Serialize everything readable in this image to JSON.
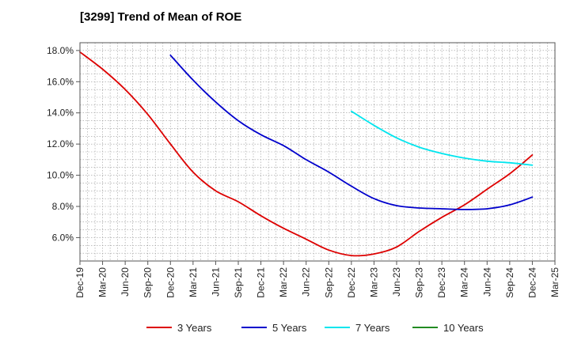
{
  "chart_data": {
    "type": "line",
    "title": "[3299]  Trend of Mean of ROE",
    "xlabel": "",
    "ylabel": "",
    "categories": [
      "Dec-19",
      "Mar-20",
      "Jun-20",
      "Sep-20",
      "Dec-20",
      "Mar-21",
      "Jun-21",
      "Sep-21",
      "Dec-21",
      "Mar-22",
      "Jun-22",
      "Sep-22",
      "Dec-22",
      "Mar-23",
      "Jun-23",
      "Sep-23",
      "Dec-23",
      "Mar-24",
      "Jun-24",
      "Sep-24",
      "Dec-24",
      "Mar-25"
    ],
    "ylim": [
      4.5,
      18.5
    ],
    "yticks": [
      6,
      8,
      10,
      12,
      14,
      16,
      18
    ],
    "ytick_labels": [
      "6.0%",
      "8.0%",
      "10.0%",
      "12.0%",
      "14.0%",
      "16.0%",
      "18.0%"
    ],
    "grid": true,
    "legend_position": "bottom",
    "series": [
      {
        "name": "3 Years",
        "color": "#dd0000",
        "values": [
          17.9,
          16.8,
          15.5,
          13.9,
          12.0,
          10.2,
          9.0,
          8.3,
          7.4,
          6.6,
          5.9,
          5.2,
          4.85,
          4.95,
          5.4,
          6.4,
          7.3,
          8.1,
          9.1,
          10.1,
          11.3,
          null
        ]
      },
      {
        "name": "5 Years",
        "color": "#0000cc",
        "values": [
          null,
          null,
          null,
          null,
          17.7,
          16.1,
          14.7,
          13.5,
          12.6,
          11.9,
          11.0,
          10.2,
          9.3,
          8.5,
          8.05,
          7.9,
          7.85,
          7.8,
          7.85,
          8.1,
          8.6,
          null
        ]
      },
      {
        "name": "7 Years",
        "color": "#00e5ee",
        "values": [
          null,
          null,
          null,
          null,
          null,
          null,
          null,
          null,
          null,
          null,
          null,
          null,
          14.1,
          13.2,
          12.4,
          11.8,
          11.4,
          11.1,
          10.9,
          10.8,
          10.65,
          null
        ]
      },
      {
        "name": "10 Years",
        "color": "#228b22",
        "values": [
          null,
          null,
          null,
          null,
          null,
          null,
          null,
          null,
          null,
          null,
          null,
          null,
          null,
          null,
          null,
          null,
          null,
          null,
          null,
          null,
          null,
          null
        ]
      }
    ]
  }
}
